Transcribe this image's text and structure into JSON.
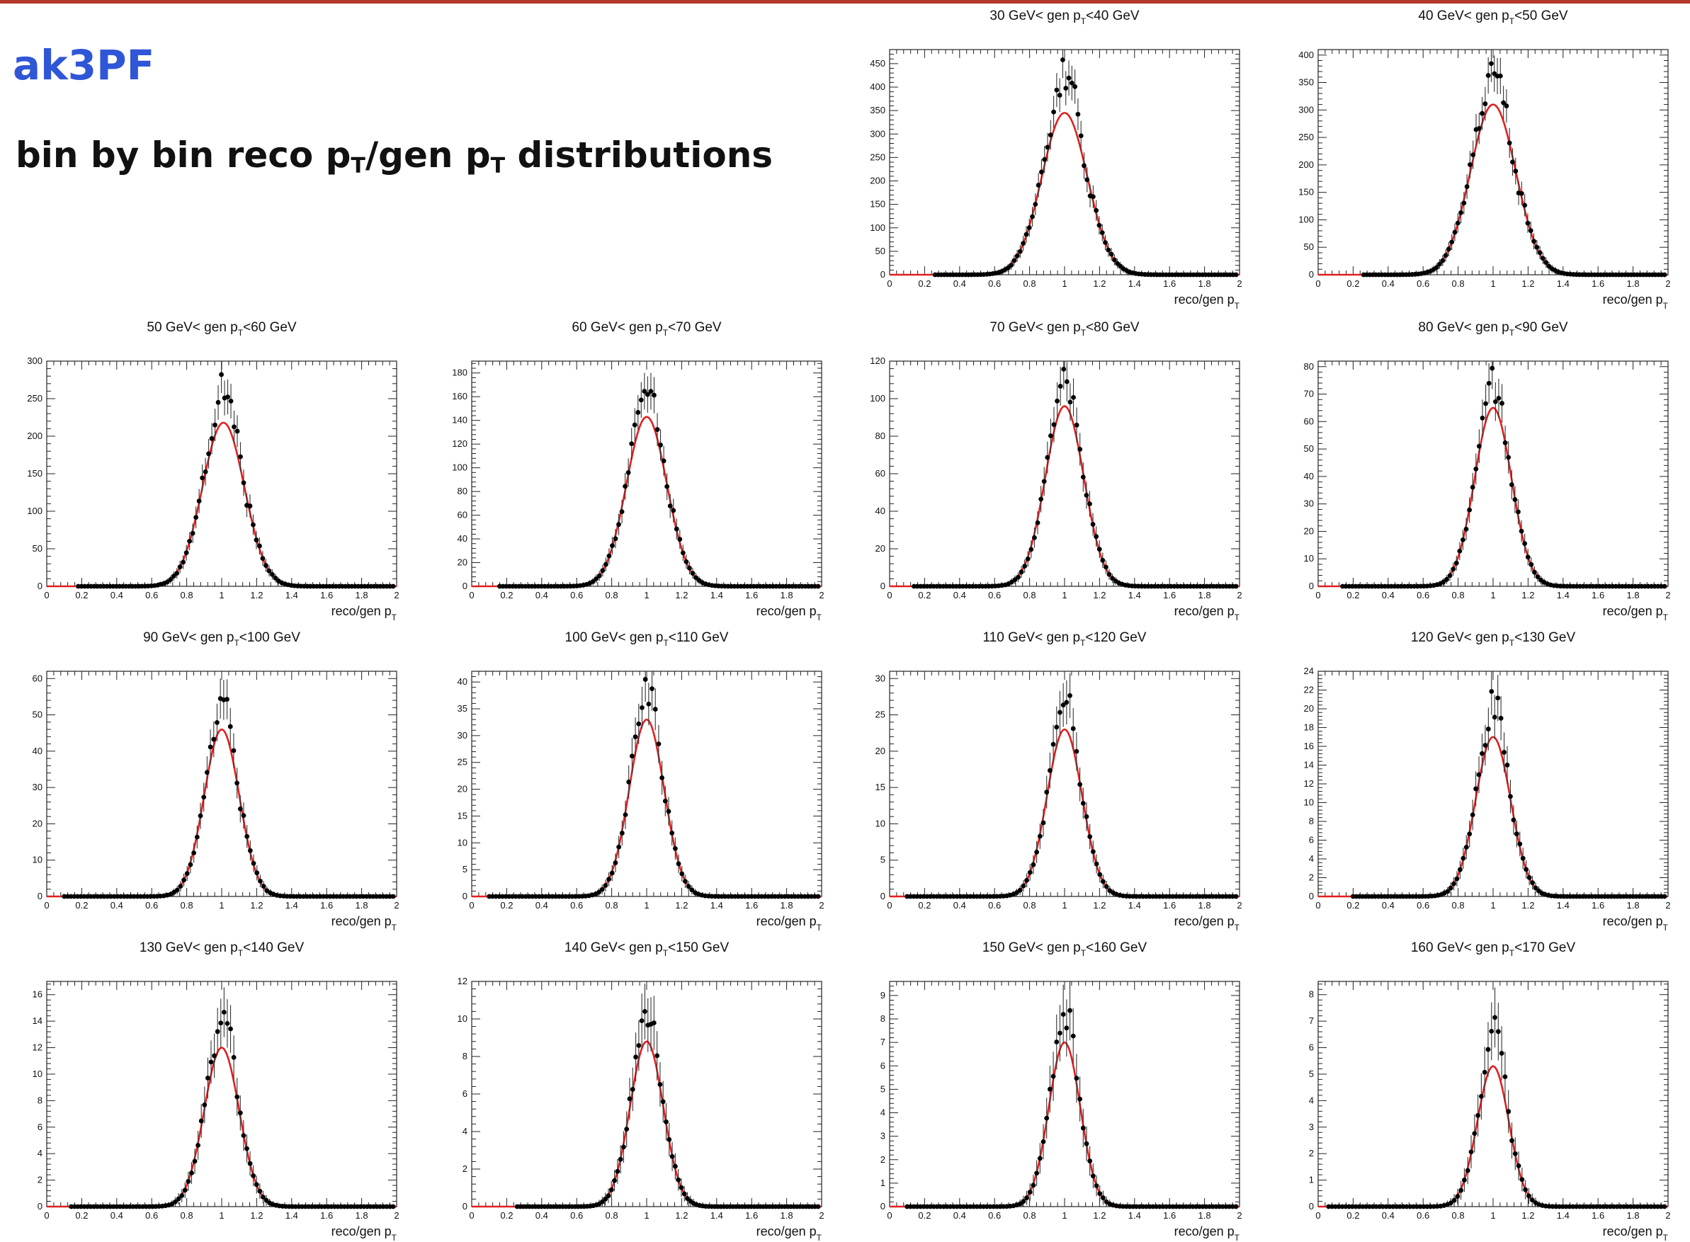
{
  "slide": {
    "title": "ak3PF",
    "subtitle_main": "bin by bin reco p",
    "subtitle_sub1": "T",
    "subtitle_mid": "/gen p",
    "subtitle_sub2": "T",
    "subtitle_tail": " distributions"
  },
  "colors": {
    "title": "#2f56d6",
    "topbar": "#b3372b",
    "fit": "#e02020",
    "points": "#000000"
  },
  "chart_data": [
    {
      "type": "scatter",
      "title": "30 GeV< gen p_T<40 GeV",
      "title_pre": "30 GeV< gen p",
      "title_sub": "T",
      "title_post": "<40 GeV",
      "xlabel_pre": "reco/gen p",
      "xlabel_sub": "T",
      "xlim": [
        0,
        2
      ],
      "ylim": [
        0,
        480
      ],
      "yticks": [
        0,
        50,
        100,
        150,
        200,
        250,
        300,
        350,
        400,
        450
      ],
      "xticks": [
        0,
        0.2,
        0.4,
        0.6,
        0.8,
        1,
        1.2,
        1.4,
        1.6,
        1.8,
        2
      ],
      "fit": {
        "model": "gaussian",
        "amplitude": 345,
        "mean": 1.0,
        "sigma": 0.13
      },
      "peak_max": 455,
      "xrange_points": [
        0.26,
        1.98
      ]
    },
    {
      "type": "scatter",
      "title": "40 GeV< gen p_T<50 GeV",
      "title_pre": "40 GeV< gen p",
      "title_sub": "T",
      "title_post": "<50 GeV",
      "xlabel_pre": "reco/gen p",
      "xlabel_sub": "T",
      "xlim": [
        0,
        2
      ],
      "ylim": [
        0,
        410
      ],
      "yticks": [
        0,
        50,
        100,
        150,
        200,
        250,
        300,
        350,
        400
      ],
      "xticks": [
        0,
        0.2,
        0.4,
        0.6,
        0.8,
        1,
        1.2,
        1.4,
        1.6,
        1.8,
        2
      ],
      "fit": {
        "model": "gaussian",
        "amplitude": 310,
        "mean": 1.0,
        "sigma": 0.13
      },
      "peak_max": 390,
      "xrange_points": [
        0.26,
        1.98
      ]
    },
    {
      "type": "scatter",
      "title": "50 GeV< gen p_T<60 GeV",
      "title_pre": "50 GeV< gen p",
      "title_sub": "T",
      "title_post": "<60 GeV",
      "xlabel_pre": "reco/gen p",
      "xlabel_sub": "T",
      "xlim": [
        0,
        2
      ],
      "ylim": [
        0,
        300
      ],
      "yticks": [
        0,
        50,
        100,
        150,
        200,
        250,
        300
      ],
      "xticks": [
        0,
        0.2,
        0.4,
        0.6,
        0.8,
        1,
        1.2,
        1.4,
        1.6,
        1.8,
        2
      ],
      "fit": {
        "model": "gaussian",
        "amplitude": 218,
        "mean": 1.01,
        "sigma": 0.12
      },
      "peak_max": 278,
      "xrange_points": [
        0.18,
        1.98
      ]
    },
    {
      "type": "scatter",
      "title": "60 GeV< gen p_T<70 GeV",
      "title_pre": "60 GeV< gen p",
      "title_sub": "T",
      "title_post": "<70 GeV",
      "xlabel_pre": "reco/gen p",
      "xlabel_sub": "T",
      "xlim": [
        0,
        2
      ],
      "ylim": [
        0,
        190
      ],
      "yticks": [
        0,
        20,
        40,
        60,
        80,
        100,
        120,
        140,
        160,
        180
      ],
      "xticks": [
        0,
        0.2,
        0.4,
        0.6,
        0.8,
        1,
        1.2,
        1.4,
        1.6,
        1.8,
        2
      ],
      "fit": {
        "model": "gaussian",
        "amplitude": 143,
        "mean": 1.0,
        "sigma": 0.115
      },
      "peak_max": 175,
      "xrange_points": [
        0.16,
        1.98
      ]
    },
    {
      "type": "scatter",
      "title": "70 GeV< gen p_T<80 GeV",
      "title_pre": "70 GeV< gen p",
      "title_sub": "T",
      "title_post": "<80 GeV",
      "xlabel_pre": "reco/gen p",
      "xlabel_sub": "T",
      "xlim": [
        0,
        2
      ],
      "ylim": [
        0,
        120
      ],
      "yticks": [
        0,
        20,
        40,
        60,
        80,
        100,
        120
      ],
      "xticks": [
        0,
        0.2,
        0.4,
        0.6,
        0.8,
        1,
        1.2,
        1.4,
        1.6,
        1.8,
        2
      ],
      "fit": {
        "model": "gaussian",
        "amplitude": 96,
        "mean": 1.0,
        "sigma": 0.11
      },
      "peak_max": 112,
      "xrange_points": [
        0.14,
        1.98
      ]
    },
    {
      "type": "scatter",
      "title": "80 GeV< gen p_T<90 GeV",
      "title_pre": "80 GeV< gen p",
      "title_sub": "T",
      "title_post": "<90 GeV",
      "xlabel_pre": "reco/gen p",
      "xlabel_sub": "T",
      "xlim": [
        0,
        2
      ],
      "ylim": [
        0,
        82
      ],
      "yticks": [
        0,
        10,
        20,
        30,
        40,
        50,
        60,
        70,
        80
      ],
      "xticks": [
        0,
        0.2,
        0.4,
        0.6,
        0.8,
        1,
        1.2,
        1.4,
        1.6,
        1.8,
        2
      ],
      "fit": {
        "model": "gaussian",
        "amplitude": 65,
        "mean": 1.0,
        "sigma": 0.105
      },
      "peak_max": 75,
      "xrange_points": [
        0.14,
        1.98
      ]
    },
    {
      "type": "scatter",
      "title": "90 GeV< gen p_T<100 GeV",
      "title_pre": "90 GeV< gen p",
      "title_sub": "T",
      "title_post": "<100 GeV",
      "xlabel_pre": "reco/gen p",
      "xlabel_sub": "T",
      "xlim": [
        0,
        2
      ],
      "ylim": [
        0,
        62
      ],
      "yticks": [
        0,
        10,
        20,
        30,
        40,
        50,
        60
      ],
      "xticks": [
        0,
        0.2,
        0.4,
        0.6,
        0.8,
        1,
        1.2,
        1.4,
        1.6,
        1.8,
        2
      ],
      "fit": {
        "model": "gaussian",
        "amplitude": 46,
        "mean": 1.0,
        "sigma": 0.1
      },
      "peak_max": 56,
      "xrange_points": [
        0.1,
        1.98
      ]
    },
    {
      "type": "scatter",
      "title": "100 GeV< gen p_T<110 GeV",
      "title_pre": "100 GeV< gen p",
      "title_sub": "T",
      "title_post": "<110 GeV",
      "xlabel_pre": "reco/gen p",
      "xlabel_sub": "T",
      "xlim": [
        0,
        2
      ],
      "ylim": [
        0,
        42
      ],
      "yticks": [
        0,
        5,
        10,
        15,
        20,
        25,
        30,
        35,
        40
      ],
      "xticks": [
        0,
        0.2,
        0.4,
        0.6,
        0.8,
        1,
        1.2,
        1.4,
        1.6,
        1.8,
        2
      ],
      "fit": {
        "model": "gaussian",
        "amplitude": 33,
        "mean": 1.0,
        "sigma": 0.1
      },
      "peak_max": 40,
      "xrange_points": [
        0.1,
        1.98
      ]
    },
    {
      "type": "scatter",
      "title": "110 GeV< gen p_T<120 GeV",
      "title_pre": "110 GeV< gen p",
      "title_sub": "T",
      "title_post": "<120 GeV",
      "xlabel_pre": "reco/gen p",
      "xlabel_sub": "T",
      "xlim": [
        0,
        2
      ],
      "ylim": [
        0,
        31
      ],
      "yticks": [
        0,
        5,
        10,
        15,
        20,
        25,
        30
      ],
      "xticks": [
        0,
        0.2,
        0.4,
        0.6,
        0.8,
        1,
        1.2,
        1.4,
        1.6,
        1.8,
        2
      ],
      "fit": {
        "model": "gaussian",
        "amplitude": 23,
        "mean": 1.0,
        "sigma": 0.1
      },
      "peak_max": 28.5,
      "xrange_points": [
        0.1,
        1.98
      ]
    },
    {
      "type": "scatter",
      "title": "120 GeV< gen p_T<130 GeV",
      "title_pre": "120 GeV< gen p",
      "title_sub": "T",
      "title_post": "<130 GeV",
      "xlabel_pre": "reco/gen p",
      "xlabel_sub": "T",
      "xlim": [
        0,
        2
      ],
      "ylim": [
        0,
        24
      ],
      "yticks": [
        0,
        2,
        4,
        6,
        8,
        10,
        12,
        14,
        16,
        18,
        20,
        22,
        24
      ],
      "xticks": [
        0,
        0.2,
        0.4,
        0.6,
        0.8,
        1,
        1.2,
        1.4,
        1.6,
        1.8,
        2
      ],
      "fit": {
        "model": "gaussian",
        "amplitude": 17,
        "mean": 1.0,
        "sigma": 0.1
      },
      "peak_max": 22,
      "xrange_points": [
        0.2,
        1.98
      ]
    },
    {
      "type": "scatter",
      "title": "130 GeV< gen p_T<140 GeV",
      "title_pre": "130 GeV< gen p",
      "title_sub": "T",
      "title_post": "<140 GeV",
      "xlabel_pre": "reco/gen p",
      "xlabel_sub": "T",
      "xlim": [
        0,
        2
      ],
      "ylim": [
        0,
        17
      ],
      "yticks": [
        0,
        2,
        4,
        6,
        8,
        10,
        12,
        14,
        16
      ],
      "xticks": [
        0,
        0.2,
        0.4,
        0.6,
        0.8,
        1,
        1.2,
        1.4,
        1.6,
        1.8,
        2
      ],
      "fit": {
        "model": "gaussian",
        "amplitude": 12,
        "mean": 1.0,
        "sigma": 0.1
      },
      "peak_max": 15.3,
      "xrange_points": [
        0.14,
        1.98
      ]
    },
    {
      "type": "scatter",
      "title": "140 GeV< gen p_T<150 GeV",
      "title_pre": "140 GeV< gen p",
      "title_sub": "T",
      "title_post": "<150 GeV",
      "xlabel_pre": "reco/gen p",
      "xlabel_sub": "T",
      "xlim": [
        0,
        2
      ],
      "ylim": [
        0,
        12
      ],
      "yticks": [
        0,
        2,
        4,
        6,
        8,
        10,
        12
      ],
      "xticks": [
        0,
        0.2,
        0.4,
        0.6,
        0.8,
        1,
        1.2,
        1.4,
        1.6,
        1.8,
        2
      ],
      "fit": {
        "model": "gaussian",
        "amplitude": 8.8,
        "mean": 1.0,
        "sigma": 0.095
      },
      "peak_max": 11,
      "xrange_points": [
        0.26,
        1.98
      ]
    },
    {
      "type": "scatter",
      "title": "150 GeV< gen p_T<160 GeV",
      "title_pre": "150 GeV< gen p",
      "title_sub": "T",
      "title_post": "<160 GeV",
      "xlabel_pre": "reco/gen p",
      "xlabel_sub": "T",
      "xlim": [
        0,
        2
      ],
      "ylim": [
        0,
        9.6
      ],
      "yticks": [
        0,
        1,
        2,
        3,
        4,
        5,
        6,
        7,
        8,
        9
      ],
      "xticks": [
        0,
        0.2,
        0.4,
        0.6,
        0.8,
        1,
        1.2,
        1.4,
        1.6,
        1.8,
        2
      ],
      "fit": {
        "model": "gaussian",
        "amplitude": 7,
        "mean": 1.0,
        "sigma": 0.09
      },
      "peak_max": 8.7,
      "xrange_points": [
        0.1,
        1.98
      ]
    },
    {
      "type": "scatter",
      "title": "160 GeV< gen p_T<170 GeV",
      "title_pre": "160 GeV< gen p",
      "title_sub": "T",
      "title_post": "<170 GeV",
      "xlabel_pre": "reco/gen p",
      "xlabel_sub": "T",
      "xlim": [
        0,
        2
      ],
      "ylim": [
        0,
        8.5
      ],
      "yticks": [
        0,
        1,
        2,
        3,
        4,
        5,
        6,
        7,
        8
      ],
      "xticks": [
        0,
        0.2,
        0.4,
        0.6,
        0.8,
        1,
        1.2,
        1.4,
        1.6,
        1.8,
        2
      ],
      "fit": {
        "model": "gaussian",
        "amplitude": 5.3,
        "mean": 1.0,
        "sigma": 0.09
      },
      "peak_max": 7.5,
      "xrange_points": [
        0.06,
        1.98
      ]
    }
  ]
}
